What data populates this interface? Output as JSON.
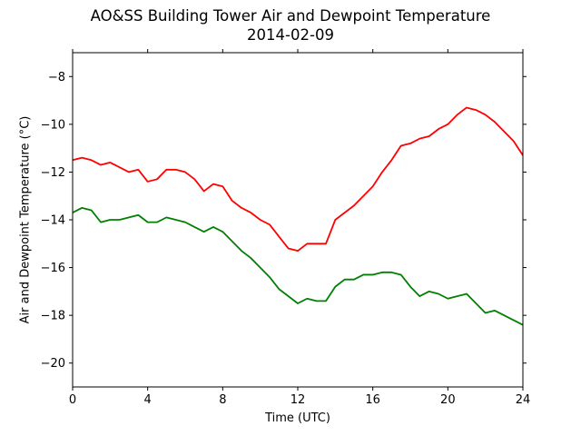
{
  "chart_data": {
    "type": "line",
    "title": "AO&SS Building Tower Air and Dewpoint Temperature",
    "subtitle": "2014-02-09",
    "xlabel": "Time (UTC)",
    "ylabel": "Air and Dewpoint Temperature (°C)",
    "xlim": [
      0,
      24
    ],
    "ylim": [
      -21,
      -7
    ],
    "xticks": [
      0,
      4,
      8,
      12,
      16,
      20,
      24
    ],
    "yticks": [
      -20,
      -18,
      -16,
      -14,
      -12,
      -10,
      -8
    ],
    "grid": false,
    "legend": "none",
    "series": [
      {
        "color": "#ff0000",
        "x": [
          0,
          0.5,
          1,
          1.5,
          2,
          2.5,
          3,
          3.5,
          4,
          4.5,
          5,
          5.5,
          6,
          6.5,
          7,
          7.5,
          8,
          8.5,
          9,
          9.5,
          10,
          10.5,
          11,
          11.5,
          12,
          12.5,
          13,
          13.5,
          14,
          14.5,
          15,
          15.5,
          16,
          16.5,
          17,
          17.5,
          18,
          18.5,
          19,
          19.5,
          20,
          20.5,
          21,
          21.5,
          22,
          22.5,
          23,
          23.5,
          24
        ],
        "y": [
          -11.5,
          -11.4,
          -11.5,
          -11.7,
          -11.6,
          -11.8,
          -12.0,
          -11.9,
          -12.4,
          -12.3,
          -11.9,
          -11.9,
          -12.0,
          -12.3,
          -12.8,
          -12.5,
          -12.6,
          -13.2,
          -13.5,
          -13.7,
          -14.0,
          -14.2,
          -14.7,
          -15.2,
          -15.3,
          -15.0,
          -15.0,
          -15.0,
          -14.0,
          -13.7,
          -13.4,
          -13.0,
          -12.6,
          -12.0,
          -11.5,
          -10.9,
          -10.8,
          -10.6,
          -10.5,
          -10.2,
          -10.0,
          -9.6,
          -9.3,
          -9.4,
          -9.6,
          -9.9,
          -10.3,
          -10.7,
          -11.3
        ]
      },
      {
        "color": "#008000",
        "x": [
          0,
          0.5,
          1,
          1.5,
          2,
          2.5,
          3,
          3.5,
          4,
          4.5,
          5,
          5.5,
          6,
          6.5,
          7,
          7.5,
          8,
          8.5,
          9,
          9.5,
          10,
          10.5,
          11,
          11.5,
          12,
          12.5,
          13,
          13.5,
          14,
          14.5,
          15,
          15.5,
          16,
          16.5,
          17,
          17.5,
          18,
          18.5,
          19,
          19.5,
          20,
          20.5,
          21,
          21.5,
          22,
          22.5,
          23,
          23.5,
          24
        ],
        "y": [
          -13.7,
          -13.5,
          -13.6,
          -14.1,
          -14.0,
          -14.0,
          -13.9,
          -13.8,
          -14.1,
          -14.1,
          -13.9,
          -14.0,
          -14.1,
          -14.3,
          -14.5,
          -14.3,
          -14.5,
          -14.9,
          -15.3,
          -15.6,
          -16.0,
          -16.4,
          -16.9,
          -17.2,
          -17.5,
          -17.3,
          -17.4,
          -17.4,
          -16.8,
          -16.5,
          -16.5,
          -16.3,
          -16.3,
          -16.2,
          -16.2,
          -16.3,
          -16.8,
          -17.2,
          -17.0,
          -17.1,
          -17.3,
          -17.2,
          -17.1,
          -17.5,
          -17.9,
          -17.8,
          -18.0,
          -18.2,
          -18.4
        ]
      }
    ]
  }
}
